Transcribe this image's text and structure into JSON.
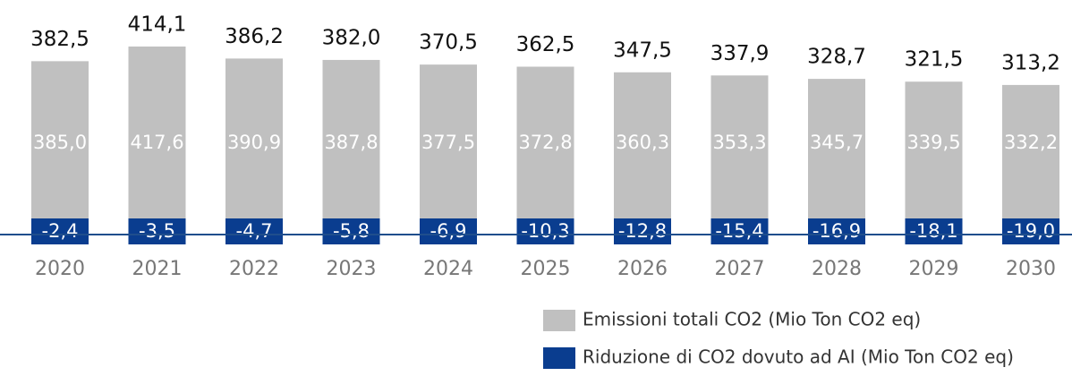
{
  "chart_data": {
    "type": "bar",
    "categories": [
      "2020",
      "2021",
      "2022",
      "2023",
      "2024",
      "2025",
      "2026",
      "2027",
      "2028",
      "2029",
      "2030"
    ],
    "series": [
      {
        "name": "Emissioni totali CO2 (Mio Ton CO2 eq)",
        "color": "#c0c0c0",
        "values": [
          385.0,
          417.6,
          390.9,
          387.8,
          377.5,
          372.8,
          360.3,
          353.3,
          345.7,
          339.5,
          332.2
        ],
        "value_labels": [
          "385,0",
          "417,6",
          "390,9",
          "387,8",
          "377,5",
          "372,8",
          "360,3",
          "353,3",
          "345,7",
          "339,5",
          "332,2"
        ]
      },
      {
        "name": "Riduzione di CO2 dovuto ad AI (Mio Ton CO2 eq)",
        "color": "#0a3d8f",
        "values": [
          -2.4,
          -3.5,
          -4.7,
          -5.8,
          -6.9,
          -10.3,
          -12.8,
          -15.4,
          -16.9,
          -18.1,
          -19.0
        ],
        "value_labels": [
          "-2,4",
          "-3,5",
          "-4,7",
          "-5,8",
          "-6,9",
          "-10,3",
          "-12,8",
          "-15,4",
          "-16,9",
          "-18,1",
          "-19,0"
        ]
      }
    ],
    "totals": [
      382.5,
      414.1,
      386.2,
      382.0,
      370.5,
      362.5,
      347.5,
      337.9,
      328.7,
      321.5,
      313.2
    ],
    "total_labels": [
      "382,5",
      "414,1",
      "386,2",
      "382,0",
      "370,5",
      "362,5",
      "347,5",
      "337,9",
      "328,7",
      "321,5",
      "313,2"
    ],
    "ylim": [
      -20,
      440
    ]
  }
}
